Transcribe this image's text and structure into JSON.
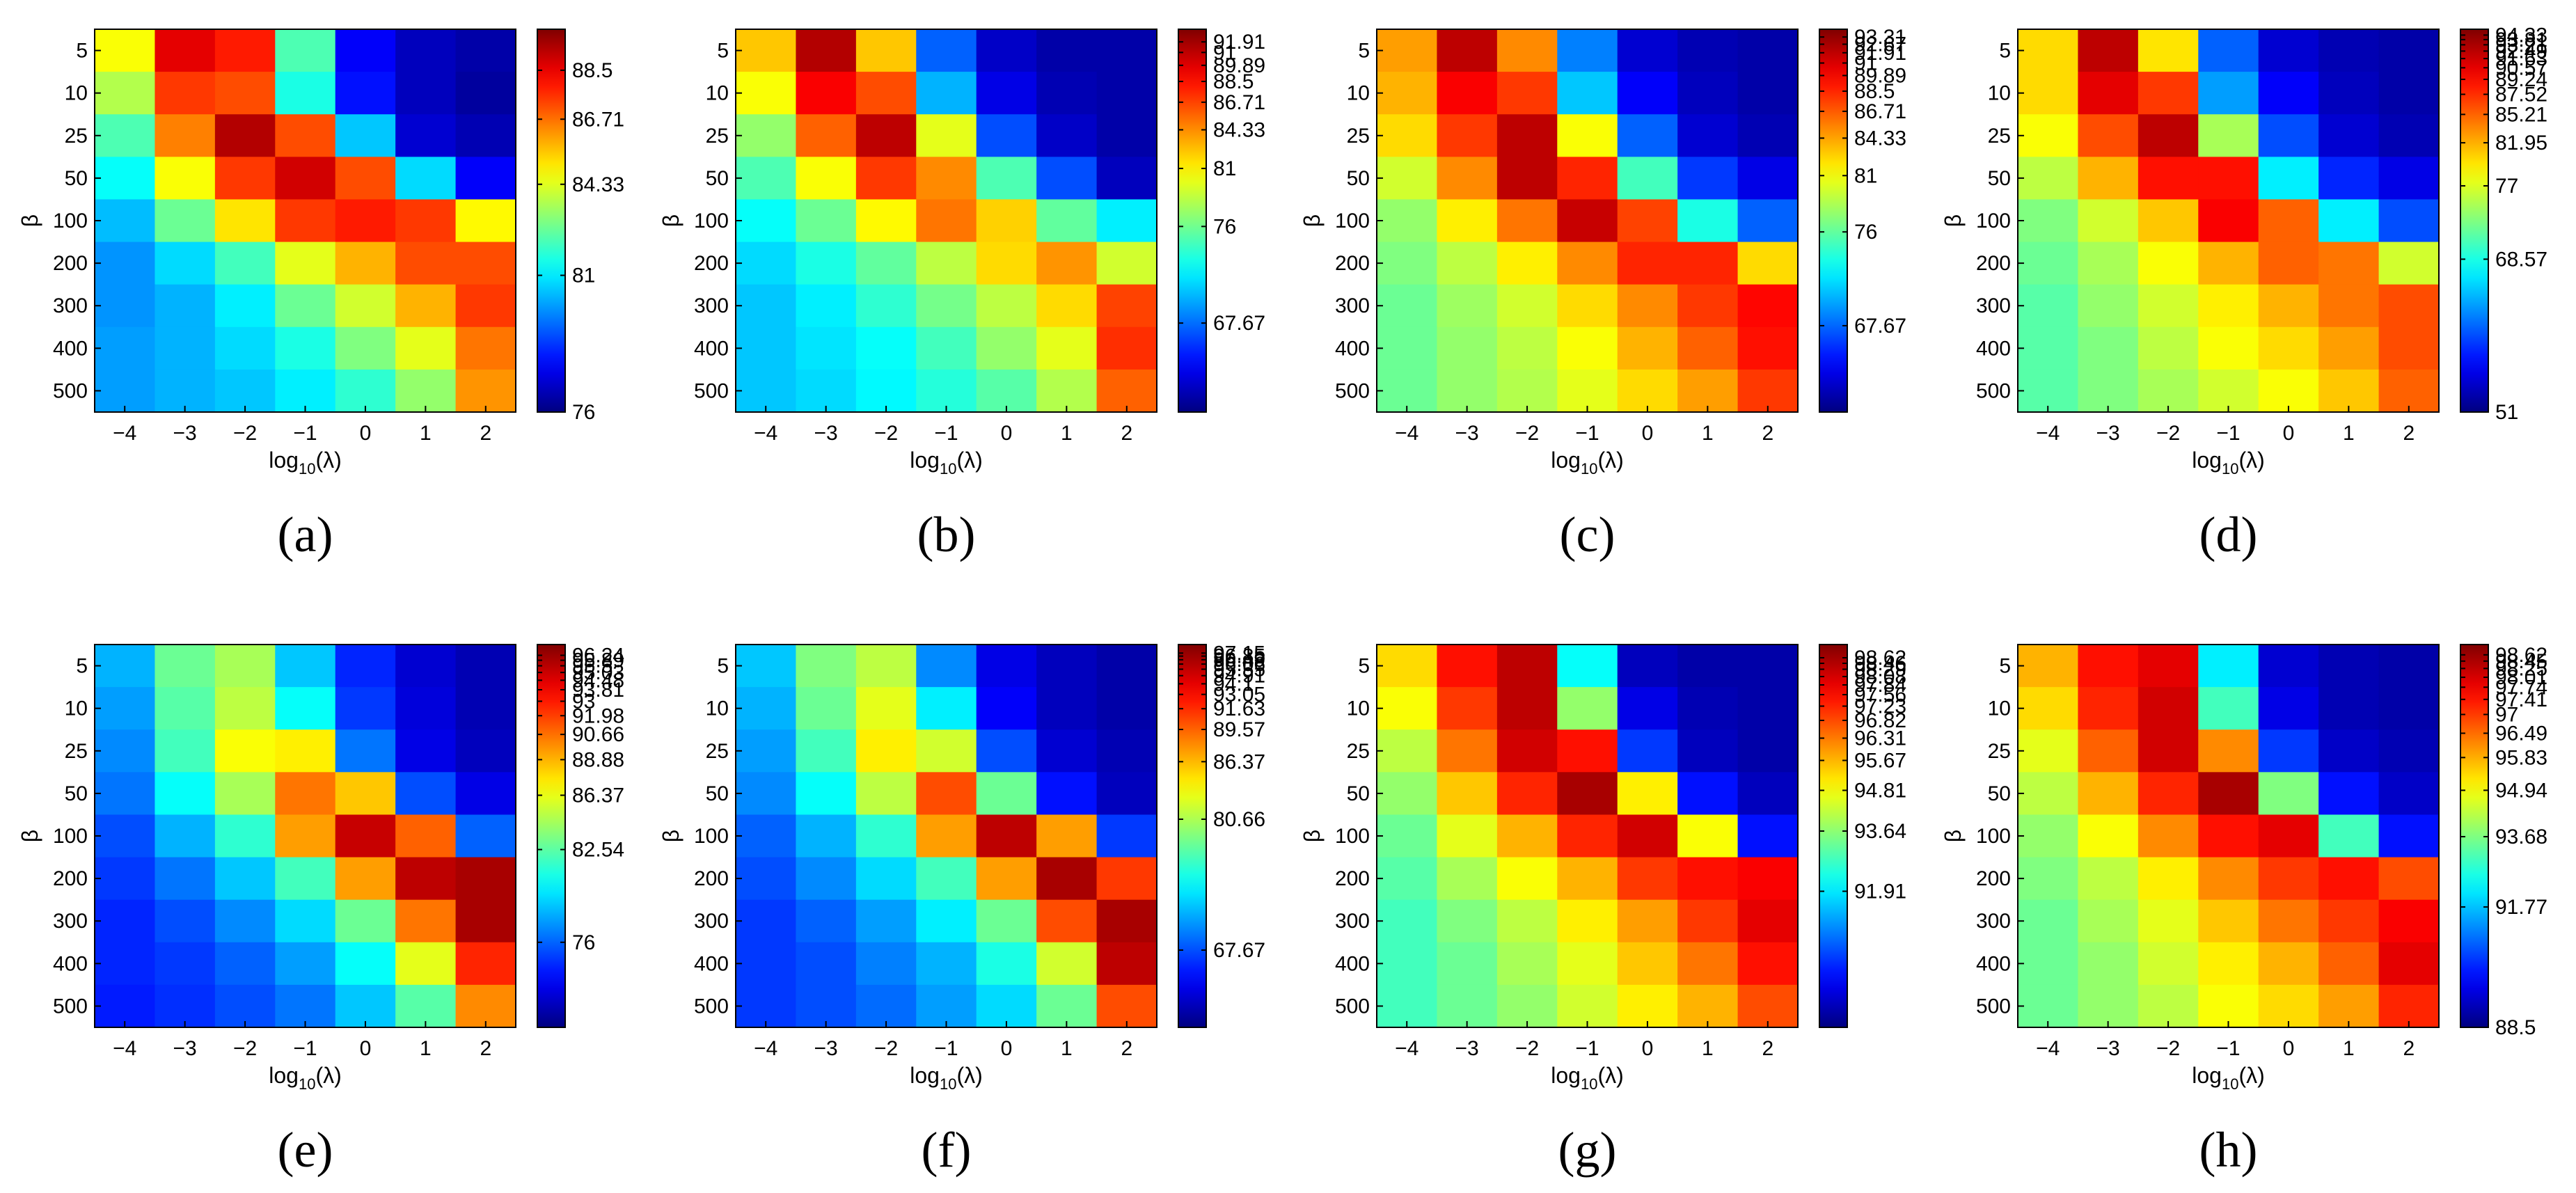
{
  "figure": {
    "xlabel": "log",
    "xlabel_sub": "10",
    "xlabel_arg": "(λ)",
    "ylabel": "β"
  },
  "chart_data": [
    {
      "type": "heatmap",
      "label": "(a)",
      "x": [
        "-4",
        "-3",
        "-2",
        "-1",
        "0",
        "1",
        "2"
      ],
      "y": [
        "5",
        "10",
        "25",
        "50",
        "100",
        "200",
        "300",
        "400",
        "500"
      ],
      "colorbar": {
        "min": 76,
        "max": 90,
        "ticks": [
          "88.5",
          "86.71",
          "84.33",
          "81",
          "76"
        ]
      },
      "values": [
        [
          0.62,
          0.9,
          0.85,
          0.45,
          0.12,
          0.06,
          0.04
        ],
        [
          0.55,
          0.82,
          0.8,
          0.4,
          0.14,
          0.06,
          0.03
        ],
        [
          0.45,
          0.75,
          0.95,
          0.8,
          0.32,
          0.08,
          0.05
        ],
        [
          0.38,
          0.62,
          0.82,
          0.92,
          0.8,
          0.34,
          0.12
        ],
        [
          0.31,
          0.48,
          0.65,
          0.82,
          0.85,
          0.82,
          0.63
        ],
        [
          0.27,
          0.34,
          0.44,
          0.6,
          0.7,
          0.8,
          0.8
        ],
        [
          0.27,
          0.3,
          0.36,
          0.48,
          0.58,
          0.7,
          0.82
        ],
        [
          0.28,
          0.3,
          0.34,
          0.4,
          0.5,
          0.6,
          0.76
        ],
        [
          0.28,
          0.3,
          0.32,
          0.36,
          0.42,
          0.52,
          0.73
        ]
      ]
    },
    {
      "type": "heatmap",
      "label": "(b)",
      "x": [
        "-4",
        "-3",
        "-2",
        "-1",
        "0",
        "1",
        "2"
      ],
      "y": [
        "5",
        "10",
        "25",
        "50",
        "100",
        "200",
        "300",
        "400",
        "500"
      ],
      "colorbar": {
        "min": 60,
        "max": 93,
        "ticks": [
          "91.91",
          "91",
          "89.89",
          "88.5",
          "86.71",
          "84.33",
          "81",
          "76",
          "67.67"
        ]
      },
      "values": [
        [
          0.68,
          0.95,
          0.68,
          0.22,
          0.07,
          0.04,
          0.04
        ],
        [
          0.62,
          0.88,
          0.8,
          0.3,
          0.1,
          0.05,
          0.04
        ],
        [
          0.52,
          0.78,
          0.94,
          0.6,
          0.2,
          0.07,
          0.04
        ],
        [
          0.45,
          0.62,
          0.82,
          0.74,
          0.45,
          0.2,
          0.06
        ],
        [
          0.38,
          0.48,
          0.63,
          0.76,
          0.67,
          0.47,
          0.36
        ],
        [
          0.34,
          0.4,
          0.47,
          0.56,
          0.66,
          0.73,
          0.58
        ],
        [
          0.32,
          0.36,
          0.42,
          0.49,
          0.56,
          0.66,
          0.81
        ],
        [
          0.32,
          0.35,
          0.38,
          0.44,
          0.52,
          0.6,
          0.83
        ],
        [
          0.32,
          0.34,
          0.37,
          0.41,
          0.46,
          0.55,
          0.78
        ]
      ]
    },
    {
      "type": "heatmap",
      "label": "(c)",
      "x": [
        "-4",
        "-3",
        "-2",
        "-1",
        "0",
        "1",
        "2"
      ],
      "y": [
        "5",
        "10",
        "25",
        "50",
        "100",
        "200",
        "300",
        "400",
        "500"
      ],
      "colorbar": {
        "min": 60,
        "max": 94,
        "ticks": [
          "93.31",
          "92.67",
          "91.91",
          "91",
          "89.89",
          "88.5",
          "86.71",
          "84.33",
          "81",
          "76",
          "67.67"
        ]
      },
      "values": [
        [
          0.72,
          0.94,
          0.74,
          0.25,
          0.08,
          0.05,
          0.04
        ],
        [
          0.7,
          0.88,
          0.82,
          0.32,
          0.12,
          0.06,
          0.04
        ],
        [
          0.66,
          0.82,
          0.94,
          0.62,
          0.22,
          0.08,
          0.05
        ],
        [
          0.58,
          0.74,
          0.94,
          0.84,
          0.44,
          0.18,
          0.1
        ],
        [
          0.52,
          0.64,
          0.76,
          0.93,
          0.81,
          0.4,
          0.22
        ],
        [
          0.5,
          0.56,
          0.64,
          0.74,
          0.84,
          0.84,
          0.66
        ],
        [
          0.48,
          0.53,
          0.58,
          0.66,
          0.74,
          0.82,
          0.87
        ],
        [
          0.48,
          0.52,
          0.56,
          0.62,
          0.7,
          0.78,
          0.86
        ],
        [
          0.48,
          0.52,
          0.55,
          0.6,
          0.66,
          0.72,
          0.82
        ]
      ]
    },
    {
      "type": "heatmap",
      "label": "(d)",
      "x": [
        "-4",
        "-3",
        "-2",
        "-1",
        "0",
        "1",
        "2"
      ],
      "y": [
        "5",
        "10",
        "25",
        "50",
        "100",
        "200",
        "300",
        "400",
        "500"
      ],
      "colorbar": {
        "min": 51,
        "max": 95,
        "ticks": [
          "94.33",
          "93.81",
          "93.21",
          "92.49",
          "91.63",
          "90.57",
          "89.24",
          "87.52",
          "85.21",
          "81.95",
          "77",
          "68.57",
          "51"
        ]
      },
      "values": [
        [
          0.66,
          0.94,
          0.65,
          0.22,
          0.08,
          0.05,
          0.04
        ],
        [
          0.66,
          0.9,
          0.82,
          0.28,
          0.12,
          0.06,
          0.04
        ],
        [
          0.62,
          0.8,
          0.94,
          0.54,
          0.2,
          0.08,
          0.05
        ],
        [
          0.56,
          0.7,
          0.86,
          0.86,
          0.36,
          0.16,
          0.1
        ],
        [
          0.5,
          0.58,
          0.68,
          0.88,
          0.78,
          0.36,
          0.2
        ],
        [
          0.48,
          0.54,
          0.62,
          0.7,
          0.78,
          0.76,
          0.58
        ],
        [
          0.46,
          0.52,
          0.58,
          0.64,
          0.7,
          0.76,
          0.8
        ],
        [
          0.46,
          0.5,
          0.56,
          0.62,
          0.66,
          0.72,
          0.8
        ],
        [
          0.46,
          0.5,
          0.54,
          0.58,
          0.62,
          0.68,
          0.78
        ]
      ]
    },
    {
      "type": "heatmap",
      "label": "(e)",
      "x": [
        "-4",
        "-3",
        "-2",
        "-1",
        "0",
        "1",
        "2"
      ],
      "y": [
        "5",
        "10",
        "25",
        "50",
        "100",
        "200",
        "300",
        "400",
        "500"
      ],
      "colorbar": {
        "min": 70,
        "max": 97,
        "ticks": [
          "96.24",
          "95.89",
          "95.5",
          "95.03",
          "94.48",
          "93.81",
          "93",
          "91.98",
          "90.66",
          "88.88",
          "86.37",
          "82.54",
          "76"
        ]
      },
      "values": [
        [
          0.3,
          0.48,
          0.54,
          0.32,
          0.16,
          0.08,
          0.05
        ],
        [
          0.28,
          0.46,
          0.56,
          0.38,
          0.18,
          0.09,
          0.05
        ],
        [
          0.26,
          0.44,
          0.62,
          0.64,
          0.24,
          0.1,
          0.06
        ],
        [
          0.24,
          0.38,
          0.54,
          0.76,
          0.68,
          0.2,
          0.1
        ],
        [
          0.2,
          0.3,
          0.42,
          0.72,
          0.93,
          0.78,
          0.22
        ],
        [
          0.18,
          0.24,
          0.32,
          0.44,
          0.72,
          0.94,
          0.96
        ],
        [
          0.16,
          0.2,
          0.26,
          0.34,
          0.48,
          0.76,
          0.96
        ],
        [
          0.16,
          0.18,
          0.22,
          0.28,
          0.38,
          0.6,
          0.84
        ],
        [
          0.15,
          0.17,
          0.2,
          0.24,
          0.32,
          0.46,
          0.74
        ]
      ]
    },
    {
      "type": "heatmap",
      "label": "(f)",
      "x": [
        "-4",
        "-3",
        "-2",
        "-1",
        "0",
        "1",
        "2"
      ],
      "y": [
        "5",
        "10",
        "25",
        "50",
        "100",
        "200",
        "300",
        "400",
        "500"
      ],
      "colorbar": {
        "min": 60,
        "max": 98,
        "ticks": [
          "97.15",
          "96.85",
          "96.49",
          "96.06",
          "95.55",
          "94.91",
          "94.1",
          "93.05",
          "91.63",
          "89.57",
          "86.37",
          "80.66",
          "67.67"
        ]
      },
      "values": [
        [
          0.32,
          0.5,
          0.56,
          0.26,
          0.1,
          0.06,
          0.04
        ],
        [
          0.3,
          0.48,
          0.6,
          0.36,
          0.12,
          0.06,
          0.04
        ],
        [
          0.28,
          0.44,
          0.64,
          0.58,
          0.2,
          0.08,
          0.05
        ],
        [
          0.26,
          0.38,
          0.56,
          0.8,
          0.48,
          0.14,
          0.06
        ],
        [
          0.22,
          0.3,
          0.42,
          0.72,
          0.94,
          0.72,
          0.18
        ],
        [
          0.2,
          0.26,
          0.34,
          0.44,
          0.72,
          0.96,
          0.82
        ],
        [
          0.18,
          0.22,
          0.28,
          0.36,
          0.48,
          0.8,
          0.96
        ],
        [
          0.18,
          0.2,
          0.25,
          0.3,
          0.4,
          0.58,
          0.94
        ],
        [
          0.18,
          0.2,
          0.23,
          0.28,
          0.34,
          0.48,
          0.8
        ]
      ]
    },
    {
      "type": "heatmap",
      "label": "(g)",
      "x": [
        "-4",
        "-3",
        "-2",
        "-1",
        "0",
        "1",
        "2"
      ],
      "y": [
        "5",
        "10",
        "25",
        "50",
        "100",
        "200",
        "300",
        "400",
        "500"
      ],
      "colorbar": {
        "min": 88,
        "max": 99,
        "ticks": [
          "98.62",
          "98.46",
          "98.29",
          "98.08",
          "97.84",
          "97.56",
          "97.23",
          "96.82",
          "96.31",
          "95.67",
          "94.81",
          "93.64",
          "91.91"
        ]
      },
      "values": [
        [
          0.66,
          0.86,
          0.94,
          0.38,
          0.06,
          0.04,
          0.04
        ],
        [
          0.62,
          0.82,
          0.94,
          0.52,
          0.1,
          0.05,
          0.04
        ],
        [
          0.56,
          0.76,
          0.92,
          0.86,
          0.18,
          0.06,
          0.04
        ],
        [
          0.52,
          0.68,
          0.84,
          0.96,
          0.64,
          0.14,
          0.06
        ],
        [
          0.48,
          0.6,
          0.7,
          0.84,
          0.92,
          0.62,
          0.14
        ],
        [
          0.46,
          0.54,
          0.62,
          0.7,
          0.82,
          0.86,
          0.88
        ],
        [
          0.44,
          0.5,
          0.56,
          0.64,
          0.72,
          0.82,
          0.9
        ],
        [
          0.44,
          0.48,
          0.54,
          0.6,
          0.68,
          0.76,
          0.86
        ],
        [
          0.44,
          0.48,
          0.52,
          0.58,
          0.64,
          0.7,
          0.8
        ]
      ]
    },
    {
      "type": "heatmap",
      "label": "(h)",
      "x": [
        "-4",
        "-3",
        "-2",
        "-1",
        "0",
        "1",
        "2"
      ],
      "y": [
        "5",
        "10",
        "25",
        "50",
        "100",
        "200",
        "300",
        "400",
        "500"
      ],
      "colorbar": {
        "min": 88.5,
        "max": 98.9,
        "ticks": [
          "98.62",
          "98.45",
          "98.25",
          "98.01",
          "97.74",
          "97.41",
          "97",
          "96.49",
          "95.83",
          "94.94",
          "93.68",
          "91.77",
          "88.5"
        ]
      },
      "values": [
        [
          0.7,
          0.86,
          0.9,
          0.36,
          0.08,
          0.05,
          0.04
        ],
        [
          0.66,
          0.84,
          0.92,
          0.44,
          0.1,
          0.05,
          0.04
        ],
        [
          0.6,
          0.78,
          0.92,
          0.74,
          0.18,
          0.07,
          0.05
        ],
        [
          0.56,
          0.7,
          0.84,
          0.96,
          0.5,
          0.14,
          0.07
        ],
        [
          0.52,
          0.62,
          0.74,
          0.86,
          0.9,
          0.44,
          0.14
        ],
        [
          0.5,
          0.56,
          0.64,
          0.74,
          0.82,
          0.86,
          0.8
        ],
        [
          0.48,
          0.54,
          0.6,
          0.68,
          0.76,
          0.82,
          0.88
        ],
        [
          0.48,
          0.52,
          0.58,
          0.64,
          0.7,
          0.78,
          0.9
        ],
        [
          0.48,
          0.52,
          0.56,
          0.62,
          0.66,
          0.72,
          0.84
        ]
      ]
    }
  ]
}
